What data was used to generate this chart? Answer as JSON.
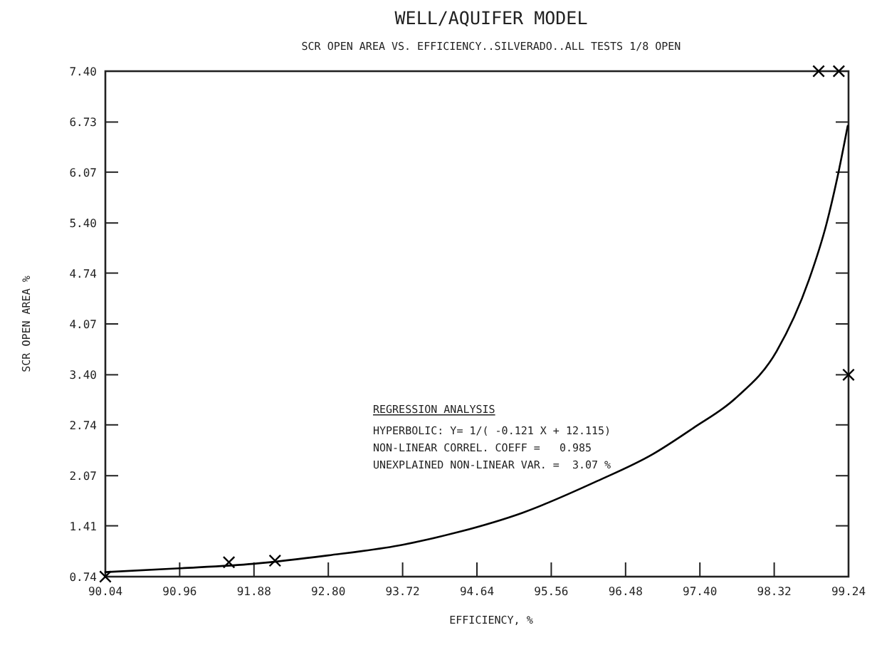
{
  "chart_data": {
    "type": "line",
    "title": "WELL/AQUIFER MODEL",
    "subtitle": "SCR OPEN AREA VS. EFFICIENCY..SILVERADO..ALL TESTS 1/8 OPEN",
    "xlabel": "EFFICIENCY, %",
    "ylabel": "SCR OPEN AREA %",
    "xlim": [
      90.04,
      99.24
    ],
    "ylim": [
      0.74,
      7.4
    ],
    "xticks": [
      90.04,
      90.96,
      91.88,
      {
        "value": 92.8,
        "label": "92.80"
      },
      93.72,
      94.64,
      95.56,
      96.48,
      {
        "value": 97.4,
        "label": "97.40"
      },
      98.32,
      99.24
    ],
    "yticks": [
      0.74,
      1.41,
      2.07,
      2.74,
      {
        "value": 3.4,
        "label": "3.40"
      },
      4.07,
      4.74,
      {
        "value": 5.4,
        "label": "5.40"
      },
      6.07,
      6.73,
      {
        "value": 7.4,
        "label": "7.40"
      }
    ],
    "annotations": [
      "REGRESSION ANALYSIS",
      "HYPERBOLIC: Y= 1/( -0.121 X + 12.115)",
      "NON-LINEAR CORREL. COEFF =   0.985",
      "UNEXPLAINED NON-LINEAR VAR. =  3.07 %"
    ],
    "series": [
      {
        "type": "line",
        "color": "#000000",
        "marker": "none",
        "x": [
          90.04,
          90.96,
          91.88,
          92.8,
          93.72,
          94.42,
          95.2,
          96.13,
          96.81,
          97.32,
          97.84,
          98.35,
          98.75,
          98.97,
          99.12,
          99.23
        ],
        "values": [
          0.8,
          0.85,
          0.91,
          1.02,
          1.16,
          1.33,
          1.58,
          2.0,
          2.35,
          2.7,
          3.09,
          3.71,
          4.65,
          5.4,
          6.09,
          6.68
        ]
      },
      {
        "type": "scatter",
        "color": "#000000",
        "marker": "cross",
        "x": [
          90.04,
          91.57,
          92.14,
          98.87,
          99.12,
          99.24
        ],
        "values": [
          0.74,
          0.93,
          0.95,
          7.4,
          7.4,
          3.4
        ]
      }
    ]
  }
}
